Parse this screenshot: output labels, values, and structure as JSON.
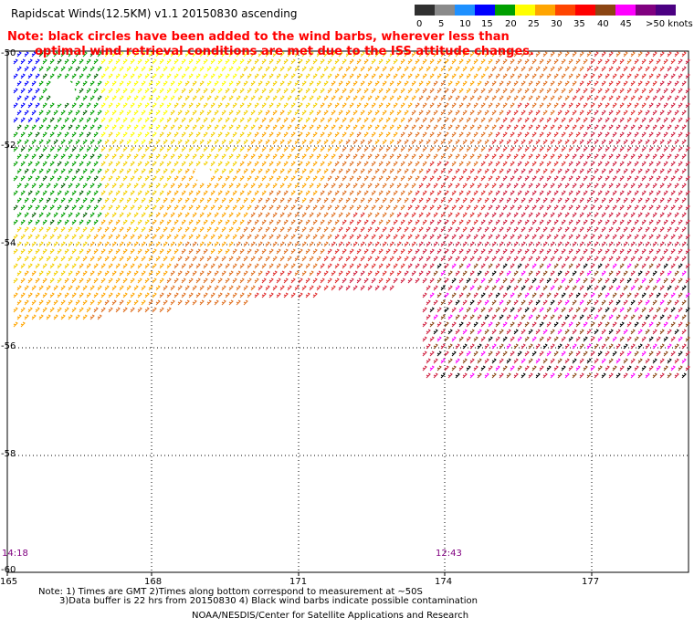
{
  "title": "Rapidscat Winds(12.5KM) v1.1 20150830 ascending",
  "note_line1": "Note: black circles have been added to the wind barbs, wherever less than",
  "note_line2": "optimal wind retrieval conditions are met due to the ISS attitude changes.",
  "legend": {
    "labels": [
      "0",
      "5",
      "10",
      "15",
      "20",
      "25",
      "30",
      "35",
      "40",
      "45",
      ">50 knots"
    ],
    "colors": [
      "#303030",
      "#8a8a8a",
      "#1e90ff",
      "#0000ff",
      "#00a000",
      "#ffff00",
      "#ffa500",
      "#ff4500",
      "#ff0000",
      "#8b4513",
      "#ff00ff",
      "#800080",
      "#4b0082"
    ]
  },
  "latitudes": [
    "-50",
    "-52",
    "-54",
    "-56",
    "-58",
    "-60"
  ],
  "longitudes": [
    "165",
    "168",
    "171",
    "174",
    "177"
  ],
  "times": [
    "14:18",
    "12:43"
  ],
  "footer": {
    "line1": "Note: 1) Times are GMT 2)Times along bottom correspond to measurement at ~50S",
    "line2": "3)Data buffer is 22 hrs from 20150830 4) Black wind barbs indicate possible contamination",
    "line3": "NOAA/NESDIS/Center for Satellite Applications and Research"
  }
}
